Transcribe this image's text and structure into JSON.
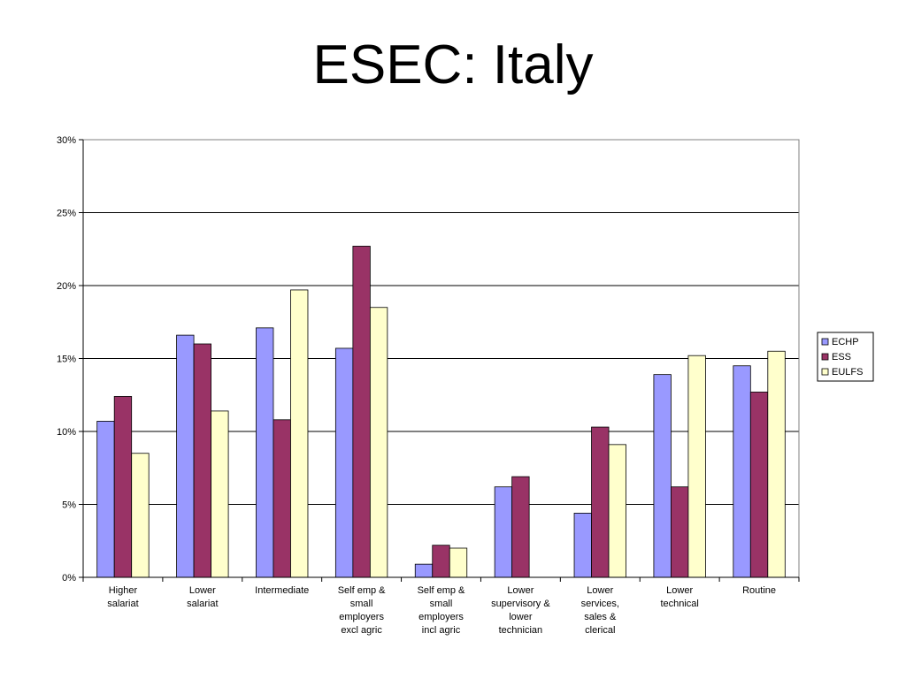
{
  "slide": {
    "title": "ESEC: Italy"
  },
  "chart_data": {
    "type": "bar",
    "title": "",
    "xlabel": "",
    "ylabel": "",
    "ylim": [
      0,
      30
    ],
    "yticks": [
      "0%",
      "5%",
      "10%",
      "15%",
      "20%",
      "25%",
      "30%"
    ],
    "grid": true,
    "legend_position": "right",
    "categories": [
      [
        "Higher",
        "salariat"
      ],
      [
        "Lower",
        "salariat"
      ],
      [
        "Intermediate"
      ],
      [
        "Self emp &",
        "small",
        "employers",
        "excl agric"
      ],
      [
        "Self emp &",
        "small",
        "employers",
        "incl agric"
      ],
      [
        "Lower",
        "supervisory &",
        "lower",
        "technician"
      ],
      [
        "Lower",
        "services,",
        "sales &",
        "clerical"
      ],
      [
        "Lower",
        "technical"
      ],
      [
        "Routine"
      ]
    ],
    "series": [
      {
        "name": "ECHP",
        "color": "#9999ff",
        "values": [
          10.7,
          16.6,
          17.1,
          15.7,
          0.9,
          6.2,
          4.4,
          13.9,
          14.5
        ]
      },
      {
        "name": "ESS",
        "color": "#993366",
        "values": [
          12.4,
          16.0,
          10.8,
          22.7,
          2.2,
          6.9,
          10.3,
          6.2,
          12.7
        ]
      },
      {
        "name": "EULFS",
        "color": "#ffffcc",
        "values": [
          8.5,
          11.4,
          19.7,
          18.5,
          2.0,
          null,
          9.1,
          15.2,
          15.5
        ]
      }
    ]
  }
}
